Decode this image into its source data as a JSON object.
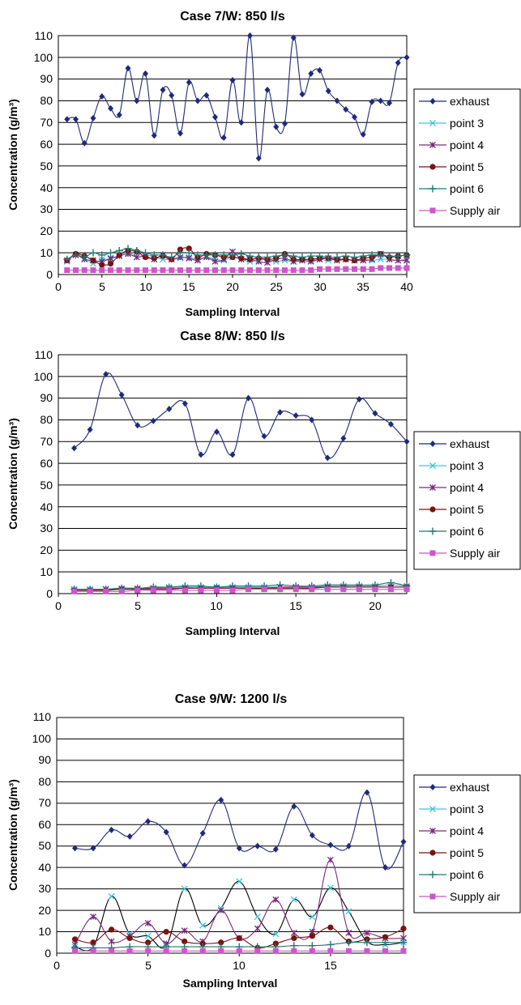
{
  "chart_data": [
    {
      "type": "line",
      "title": "Case 7/W: 850 l/s",
      "xlabel": "Sampling Interval",
      "ylabel": "Concentration (g/m³)",
      "xlim": [
        0,
        40
      ],
      "ylim": [
        0,
        110
      ],
      "xticks": [
        "0",
        "5",
        "10",
        "15",
        "20",
        "25",
        "30",
        "35",
        "40"
      ],
      "yticks": [
        "0",
        "10",
        "20",
        "30",
        "40",
        "50",
        "60",
        "70",
        "80",
        "90",
        "100",
        "110"
      ],
      "grid": "horizontal",
      "legend": "right",
      "x": [
        1,
        2,
        3,
        4,
        5,
        6,
        7,
        8,
        9,
        10,
        11,
        12,
        13,
        14,
        15,
        16,
        17,
        18,
        19,
        20,
        21,
        22,
        23,
        24,
        25,
        26,
        27,
        28,
        29,
        30,
        31,
        32,
        33,
        34,
        35,
        36,
        37,
        38,
        39,
        40
      ],
      "series": [
        {
          "name": "exhaust",
          "color": "#1f2a7a",
          "marker": "diamond",
          "values": [
            71.5,
            71.5,
            60.5,
            72,
            82,
            76.5,
            73.5,
            95,
            80,
            92.5,
            64,
            85,
            82.5,
            65,
            88.5,
            80,
            82.5,
            72.5,
            63,
            89.5,
            70,
            110,
            53.5,
            85,
            68,
            69.5,
            109,
            83,
            92.5,
            94,
            84.5,
            80,
            76,
            72.5,
            64.5,
            79.5,
            80,
            79,
            97.5,
            100
          ]
        },
        {
          "name": "point 3",
          "color": "#33c9dd",
          "marker": "x",
          "values": [
            6,
            9,
            7.5,
            5,
            7,
            7,
            9,
            10,
            8,
            9,
            8,
            7,
            7,
            7.5,
            8,
            7,
            8,
            7,
            6.5,
            8,
            7,
            6,
            6.5,
            7,
            6,
            6.5,
            6,
            7,
            6.5,
            7,
            6.5,
            7,
            7,
            6.5,
            7,
            6.5,
            7,
            7,
            6.5,
            7
          ]
        },
        {
          "name": "point 4",
          "color": "#7a2a7a",
          "marker": "asterisk",
          "values": [
            6.5,
            9,
            7,
            6.5,
            6,
            7.5,
            8.5,
            9.5,
            8,
            8.5,
            7,
            9,
            7,
            8,
            7.5,
            6.5,
            8,
            6,
            7,
            10.5,
            7,
            7,
            6,
            5.5,
            7,
            7.5,
            6,
            6.5,
            6,
            7,
            7.5,
            6.5,
            7,
            6.5,
            6.5,
            7,
            9.5,
            7,
            6.5,
            6.5
          ]
        },
        {
          "name": "point 5",
          "color": "#7a1212",
          "marker": "circle",
          "values": [
            6.5,
            9.5,
            8.5,
            6.5,
            4.5,
            5,
            9,
            11,
            10.5,
            8,
            7.5,
            8.5,
            7,
            11.5,
            12,
            8,
            9.5,
            9,
            8,
            8,
            7.5,
            7,
            7.5,
            7,
            7.5,
            9.5,
            7,
            7,
            7,
            7.5,
            7.5,
            7,
            7,
            6.5,
            7.5,
            8,
            9.5,
            8,
            8.5,
            9
          ]
        },
        {
          "name": "point 6",
          "color": "#1f7a75",
          "marker": "plus",
          "values": [
            7,
            9,
            8,
            10,
            9,
            10,
            11,
            12,
            11,
            10,
            9,
            9,
            8,
            10,
            10,
            9,
            9,
            9,
            9,
            9,
            9.5,
            8.5,
            8,
            8,
            8.5,
            9,
            8.5,
            8,
            8.5,
            8.5,
            8,
            8,
            8.5,
            8,
            8.5,
            9,
            9,
            8.5,
            8.5,
            9
          ]
        },
        {
          "name": "Supply air",
          "color": "#cc55cc",
          "marker": "square",
          "values": [
            2,
            2,
            2,
            2,
            2,
            2,
            2,
            2,
            2,
            2,
            2,
            2,
            2,
            2,
            2,
            2,
            2,
            2,
            2,
            2,
            2,
            2,
            2,
            2,
            2,
            2,
            2,
            2,
            2,
            2.5,
            2.5,
            2.5,
            2.5,
            2.5,
            2.5,
            2.5,
            3,
            3,
            3,
            3
          ]
        }
      ]
    },
    {
      "type": "line",
      "title": "Case 8/W: 850 l/s",
      "xlabel": "Sampling Interval",
      "ylabel": "Concentration (g/m³)",
      "xlim": [
        0,
        22
      ],
      "ylim": [
        0,
        110
      ],
      "xticks": [
        "0",
        "5",
        "10",
        "15",
        "20"
      ],
      "yticks": [
        "0",
        "10",
        "20",
        "30",
        "40",
        "50",
        "60",
        "70",
        "80",
        "90",
        "100",
        "110"
      ],
      "grid": "horizontal",
      "legend": "right",
      "x": [
        1,
        2,
        3,
        4,
        5,
        6,
        7,
        8,
        9,
        10,
        11,
        12,
        13,
        14,
        15,
        16,
        17,
        18,
        19,
        20,
        21,
        22
      ],
      "series": [
        {
          "name": "exhaust",
          "color": "#1f2a7a",
          "marker": "diamond",
          "values": [
            67,
            75.5,
            101,
            91.5,
            77.5,
            79.5,
            85,
            87.5,
            64,
            74.5,
            64,
            90,
            72.5,
            83.5,
            82,
            80,
            62.5,
            71.5,
            89.5,
            83,
            78,
            70
          ]
        },
        {
          "name": "point 3",
          "color": "#33c9dd",
          "marker": "x",
          "values": [
            2,
            2,
            2,
            2.5,
            2.5,
            2.5,
            3,
            3,
            3,
            3,
            3,
            3,
            3,
            3,
            3,
            3,
            3.5,
            3.5,
            3.5,
            3.5,
            4,
            3.5
          ]
        },
        {
          "name": "point 4",
          "color": "#7a2a7a",
          "marker": "asterisk",
          "values": [
            1.5,
            1.5,
            2,
            2,
            2,
            2.5,
            2.5,
            2.5,
            2.5,
            2.5,
            2.5,
            2.5,
            2.5,
            3,
            3,
            3,
            3,
            3,
            3,
            3,
            3,
            3
          ]
        },
        {
          "name": "point 5",
          "color": "#7a1212",
          "marker": "circle",
          "values": [
            1.5,
            1.5,
            1.5,
            2,
            2,
            2,
            2,
            2.5,
            2.5,
            2.5,
            2.5,
            2.5,
            2.5,
            2.5,
            2.5,
            2.5,
            3,
            3,
            3,
            3,
            3,
            3
          ]
        },
        {
          "name": "point 6",
          "color": "#1f7a75",
          "marker": "plus",
          "values": [
            2,
            2,
            2,
            2.5,
            2.5,
            3,
            3,
            3.5,
            3.5,
            3,
            3.5,
            3.5,
            3.5,
            4,
            3.5,
            3.5,
            4,
            4,
            4,
            4,
            5,
            3.5
          ]
        },
        {
          "name": "Supply air",
          "color": "#cc55cc",
          "marker": "square",
          "values": [
            1,
            1,
            1,
            1,
            1.5,
            1.5,
            1.5,
            1.5,
            1.5,
            1.5,
            1.5,
            2,
            2,
            2,
            2,
            2,
            2,
            2,
            2,
            2,
            2,
            2
          ]
        }
      ]
    },
    {
      "type": "line",
      "title": "Case 9/W: 1200 l/s",
      "xlabel": "Sampling Interval",
      "ylabel": "Concentration (g/m³)",
      "xlim": [
        0,
        19
      ],
      "ylim": [
        0,
        110
      ],
      "xticks": [
        "0",
        "5",
        "10",
        "15"
      ],
      "yticks": [
        "0",
        "10",
        "20",
        "30",
        "40",
        "50",
        "60",
        "70",
        "80",
        "90",
        "100",
        "110"
      ],
      "grid": "horizontal",
      "legend": "right",
      "x": [
        1,
        2,
        3,
        4,
        5,
        6,
        7,
        8,
        9,
        10,
        11,
        12,
        13,
        14,
        15,
        16,
        17,
        18,
        19
      ],
      "series": [
        {
          "name": "exhaust",
          "color": "#1f2a7a",
          "marker": "diamond",
          "values": [
            49,
            49,
            57.5,
            54.5,
            61.5,
            56.5,
            41,
            56,
            71.5,
            49,
            50,
            48.5,
            68.5,
            55,
            50.5,
            50,
            75,
            40,
            52
          ]
        },
        {
          "name": "point 3",
          "color": "#33c9dd",
          "marker": "x",
          "line_color": "#000000",
          "values": [
            3,
            3,
            26.5,
            9,
            8,
            3.5,
            30,
            13,
            21,
            33.5,
            17,
            9,
            25,
            17,
            30.5,
            19.5,
            5.5,
            4,
            5
          ]
        },
        {
          "name": "point 4",
          "color": "#7a2a7a",
          "marker": "asterisk",
          "values": [
            4,
            17,
            5.5,
            8,
            14,
            4.5,
            10.5,
            5.5,
            20,
            7,
            11.5,
            25,
            9.5,
            10,
            43.5,
            9.5,
            9.5,
            7,
            7
          ]
        },
        {
          "name": "point 5",
          "color": "#7a1212",
          "marker": "circle",
          "values": [
            6.5,
            5,
            11,
            7,
            5,
            10,
            5.5,
            4.5,
            5,
            7,
            2.5,
            4.5,
            7,
            8,
            12,
            5.5,
            6.5,
            7.5,
            11.5
          ]
        },
        {
          "name": "point 6",
          "color": "#1f7a75",
          "marker": "plus",
          "values": [
            2.5,
            2.5,
            2.5,
            3,
            3,
            3,
            3,
            3,
            3,
            3,
            3,
            3,
            3.5,
            3.5,
            4,
            5,
            5,
            5,
            5
          ]
        },
        {
          "name": "Supply air",
          "color": "#cc55cc",
          "marker": "square",
          "values": [
            1,
            1,
            1,
            1,
            1,
            1,
            1,
            1,
            1,
            1,
            1,
            1,
            1,
            1,
            1,
            1,
            1,
            1,
            1
          ]
        }
      ]
    }
  ]
}
